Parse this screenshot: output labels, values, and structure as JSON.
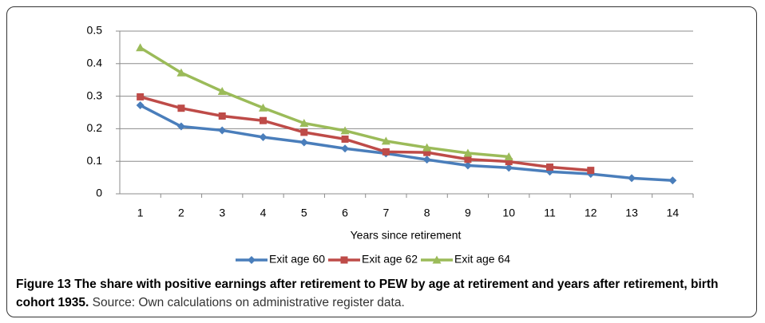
{
  "chart_data": {
    "type": "line",
    "categories": [
      "1",
      "2",
      "3",
      "4",
      "5",
      "6",
      "7",
      "8",
      "9",
      "10",
      "11",
      "12",
      "13",
      "14"
    ],
    "series": [
      {
        "name": "Exit age 60",
        "color": "#4a7ebb",
        "marker": "diamond",
        "values": [
          0.272,
          0.207,
          0.195,
          0.174,
          0.158,
          0.139,
          0.124,
          0.105,
          0.087,
          0.08,
          0.068,
          0.061,
          0.048,
          0.041
        ]
      },
      {
        "name": "Exit age 62",
        "color": "#be4b48",
        "marker": "square",
        "values": [
          0.298,
          0.263,
          0.239,
          0.225,
          0.189,
          0.168,
          0.129,
          0.127,
          0.106,
          0.099,
          0.082,
          0.072,
          null,
          null
        ]
      },
      {
        "name": "Exit age 64",
        "color": "#9bbb59",
        "marker": "triangle",
        "values": [
          0.449,
          0.372,
          0.315,
          0.264,
          0.217,
          0.194,
          0.162,
          0.142,
          0.125,
          0.114,
          null,
          null,
          null,
          null
        ]
      }
    ],
    "ylim": [
      0,
      0.5
    ],
    "yticks": [
      0,
      0.1,
      0.2,
      0.3,
      0.4,
      0.5
    ],
    "grid": true,
    "x_label": "Years since retirement",
    "legend": "bottom",
    "caption": "Figure 13 The share with positive earnings after retirement to PEW by age at retirement and years after retirement, birth cohort 1935.",
    "source": "Source: Own calculations on administrative register data."
  }
}
